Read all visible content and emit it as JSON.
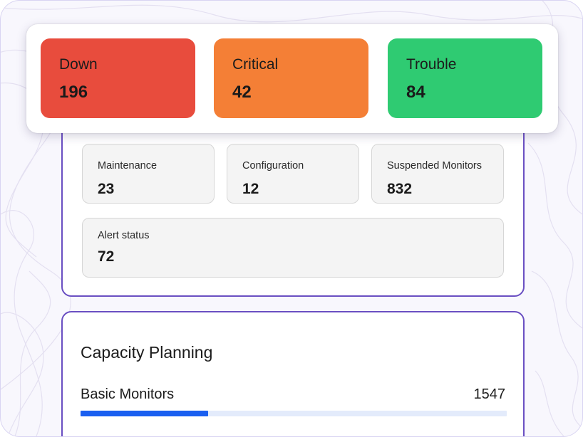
{
  "colors": {
    "down": "#e84c3d",
    "critical": "#f47f36",
    "trouble": "#2fcb72",
    "accent_border": "#6a4fc2",
    "progress": "#1a5ff0",
    "progress_track": "#e3ebfb"
  },
  "alerts": {
    "down": {
      "label": "Down",
      "value": "196"
    },
    "critical": {
      "label": "Critical",
      "value": "42"
    },
    "trouble": {
      "label": "Trouble",
      "value": "84"
    }
  },
  "status": {
    "maintenance": {
      "label": "Maintenance",
      "value": "23"
    },
    "configuration": {
      "label": "Configuration",
      "value": "12"
    },
    "suspended": {
      "label": "Suspended Monitors",
      "value": "832"
    },
    "alert_status": {
      "label": "Alert status",
      "value": "72"
    }
  },
  "capacity": {
    "title": "Capacity Planning",
    "basic_monitors": {
      "label": "Basic Monitors",
      "value": "1547",
      "usage_fraction": 0.3
    }
  }
}
